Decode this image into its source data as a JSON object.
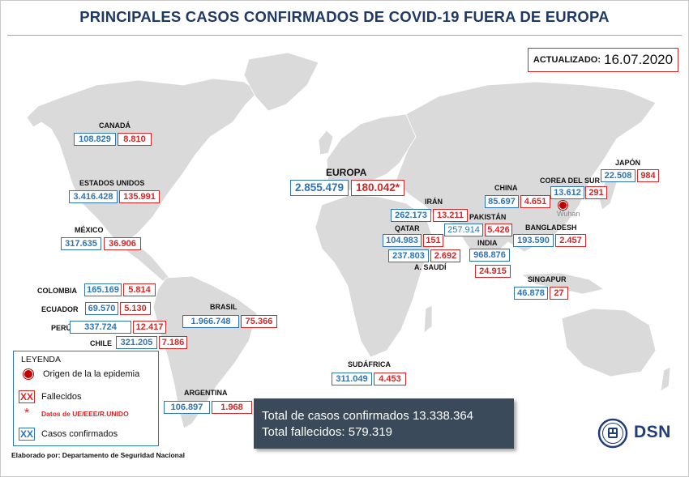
{
  "title": "PRINCIPALES CASOS CONFIRMADOS DE COVID-19 FUERA DE EUROPA",
  "updated": {
    "label": "ACTUALIZADO:",
    "date": "16.07.2020"
  },
  "europa": {
    "name": "EUROPA",
    "confirmed": "2.855.479",
    "deaths": "180.042*"
  },
  "countries": {
    "canada": {
      "name": "CANADÁ",
      "confirmed": "108.829",
      "deaths": "8.810"
    },
    "usa": {
      "name": "ESTADOS UNIDOS",
      "confirmed": "3.416.428",
      "deaths": "135.991"
    },
    "mexico": {
      "name": "MÉXICO",
      "confirmed": "317.635",
      "deaths": "36.906"
    },
    "colombia": {
      "name": "COLOMBIA",
      "confirmed": "165.169",
      "deaths": "5.814"
    },
    "ecuador": {
      "name": "ECUADOR",
      "confirmed": "69.570",
      "deaths": "5.130"
    },
    "peru": {
      "name": "PERÚ",
      "confirmed": "337.724",
      "deaths": "12.417"
    },
    "chile": {
      "name": "CHILE",
      "confirmed": "321.205",
      "deaths": "7.186"
    },
    "brasil": {
      "name": "BRASIL",
      "confirmed": "1.966.748",
      "deaths": "75.366"
    },
    "argentina": {
      "name": "ARGENTINA",
      "confirmed": "106.897",
      "deaths": "1.968"
    },
    "sudafrica": {
      "name": "SUDÁFRICA",
      "confirmed": "311.049",
      "deaths": "4.453"
    },
    "iran": {
      "name": "IRÁN",
      "confirmed": "262.173",
      "deaths": "13.211"
    },
    "qatar": {
      "name": "QATAR",
      "confirmed": "104.983",
      "deaths": "151"
    },
    "arabia": {
      "name": "A. SAUDÍ",
      "confirmed": "237.803",
      "deaths": "2.692"
    },
    "pakistan": {
      "name": "PAKISTÁN",
      "confirmed": "257.914",
      "deaths": "5.426"
    },
    "india": {
      "name": "INDIA",
      "confirmed": "968.876",
      "deaths": "24.915"
    },
    "china": {
      "name": "CHINA",
      "confirmed": "85.697",
      "deaths": "4.651"
    },
    "corea": {
      "name": "COREA DEL SUR",
      "confirmed": "13.612",
      "deaths": "291"
    },
    "japon": {
      "name": "JAPÓN",
      "confirmed": "22.508",
      "deaths": "984"
    },
    "bangladesh": {
      "name": "BANGLADESH",
      "confirmed": "193.590",
      "deaths": "2.457"
    },
    "singapur": {
      "name": "SINGAPUR",
      "confirmed": "46.878",
      "deaths": "27"
    }
  },
  "wuhan": {
    "label": "Wuhan",
    "color": "#c00000"
  },
  "legend": {
    "title": "LEYENDA",
    "origin": "Origen de la la epidemia",
    "deaths_marker": "XX",
    "deaths": "Fallecidos",
    "eu_marker": "*",
    "eu_note": "Datos de UE/EEE/R.UNIDO",
    "confirmed_marker": "XX",
    "confirmed": "Casos confirmados"
  },
  "totals": {
    "confirmed_label": "Total de casos confirmados",
    "confirmed_value": "13.338.364",
    "deaths_label": "Total fallecidos:",
    "deaths_value": "579.319"
  },
  "footer": "Elaborado por: Departamento de Seguridad Nacional",
  "brand": "DSN",
  "colors": {
    "confirmed": "#2e75b6",
    "deaths": "#d62728",
    "title": "#1f3864",
    "land": "#dadada",
    "totals_bg": "#3a4a5a"
  }
}
